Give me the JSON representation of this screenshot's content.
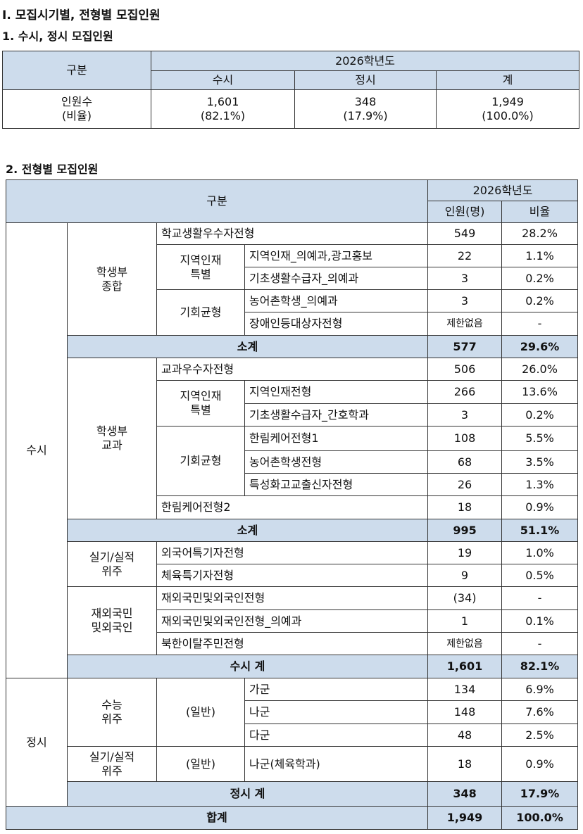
{
  "title": "Ⅰ. 모집시기별, 전형별 모집인원",
  "table1": {
    "title": "1. 수시, 정시 모집인원",
    "header": {
      "category": "구분",
      "year": "2026학년도",
      "columns": [
        "수시",
        "정시",
        "계"
      ]
    },
    "row_label": [
      "인원수",
      "(비율)"
    ],
    "counts": [
      "1,601",
      348,
      "1,949"
    ],
    "ratios": [
      "(82.1%)",
      "(17.9%)",
      "(100.0%)"
    ]
  },
  "table2": {
    "title": "2. 전형별 모집인원",
    "header": {
      "category": "구분",
      "year": "2026학년도",
      "count": "인원(명)",
      "ratio": "비율"
    },
    "level1": [
      "수시",
      "정시"
    ],
    "level2": [
      [
        "학생부",
        "종합"
      ],
      [
        "학생부",
        "교과"
      ],
      [
        "실기/실적",
        "위주"
      ],
      [
        "재외국민",
        "및외국인"
      ],
      [
        "수능",
        "위주"
      ],
      [
        "실기/실적",
        "위주"
      ]
    ],
    "level3": [
      [
        "지역인재",
        "특별"
      ],
      [
        "기회균형"
      ],
      [
        "지역인재",
        "특별"
      ],
      [
        "기회균형"
      ],
      [
        "(일반)"
      ],
      [
        "(일반)"
      ]
    ],
    "rows": [
      {
        "name": "학교생활우수자전형",
        "count": 549,
        "ratio": "28.2%"
      },
      {
        "name": "지역인재_의예과,광고홍보",
        "count": 22,
        "ratio": "1.1%"
      },
      {
        "name": "기초생활수급자_의예과",
        "count": 3,
        "ratio": "0.2%"
      },
      {
        "name": "농어촌학생_의예과",
        "count": 3,
        "ratio": "0.2%"
      },
      {
        "name": "장애인등대상자전형",
        "count": "제한없음",
        "ratio": "-"
      },
      {
        "name": "소계",
        "count": 577,
        "ratio": "29.6%"
      },
      {
        "name": "교과우수자전형",
        "count": 506,
        "ratio": "26.0%"
      },
      {
        "name": "지역인재전형",
        "count": 266,
        "ratio": "13.6%"
      },
      {
        "name": "기초생활수급자_간호학과",
        "count": 3,
        "ratio": "0.2%"
      },
      {
        "name": "한림케어전형1",
        "count": 108,
        "ratio": "5.5%"
      },
      {
        "name": "농어촌학생전형",
        "count": 68,
        "ratio": "3.5%"
      },
      {
        "name": "특성화고교출신자전형",
        "count": 26,
        "ratio": "1.3%"
      },
      {
        "name": "한림케어전형2",
        "count": 18,
        "ratio": "0.9%"
      },
      {
        "name": "소계",
        "count": 995,
        "ratio": "51.1%"
      },
      {
        "name": "외국어특기자전형",
        "count": 19,
        "ratio": "1.0%"
      },
      {
        "name": "체육특기자전형",
        "count": 9,
        "ratio": "0.5%"
      },
      {
        "name": "재외국민및외국인전형",
        "count": "(34)",
        "ratio": "-"
      },
      {
        "name": "재외국민및외국인전형_의예과",
        "count": 1,
        "ratio": "0.1%"
      },
      {
        "name": "북한이탈주민전형",
        "count": "제한없음",
        "ratio": "-"
      },
      {
        "name": "수시 계",
        "count": "1,601",
        "ratio": "82.1%"
      },
      {
        "name": "가군",
        "count": 134,
        "ratio": "6.9%"
      },
      {
        "name": "나군",
        "count": 148,
        "ratio": "7.6%"
      },
      {
        "name": "다군",
        "count": 48,
        "ratio": "2.5%"
      },
      {
        "name": "나군(체육학과)",
        "count": 18,
        "ratio": "0.9%"
      },
      {
        "name": "정시 계",
        "count": 348,
        "ratio": "17.9%"
      },
      {
        "name": "합계",
        "count": "1,949",
        "ratio": "100.0%"
      }
    ]
  }
}
